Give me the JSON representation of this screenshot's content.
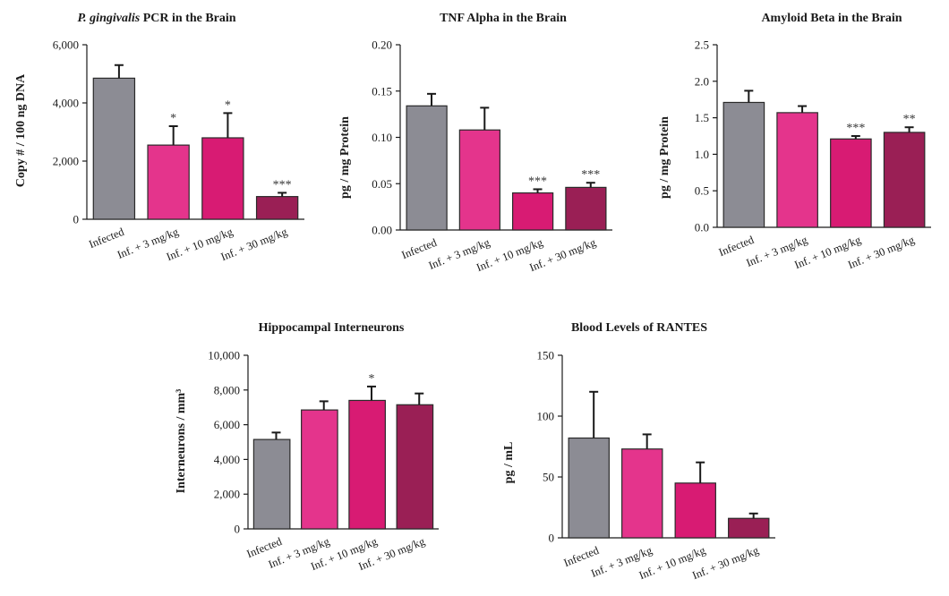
{
  "colors": [
    "#8c8c94",
    "#e4348c",
    "#d81b73",
    "#9a1f55"
  ],
  "chart_data": [
    {
      "type": "bar",
      "title_italic": "P. gingivalis",
      "title": " PCR in the Brain",
      "ylabel": "Copy # / 100 ng DNA",
      "categories": [
        "Infected",
        "Inf. + 3 mg/kg",
        "Inf. + 10 mg/kg",
        "Inf. + 30 mg/kg"
      ],
      "values": [
        4850,
        2550,
        2800,
        780
      ],
      "errors": [
        450,
        650,
        850,
        130
      ],
      "significance": [
        "",
        "*",
        "*",
        "***"
      ],
      "ylim": [
        0,
        6000
      ],
      "yticks": [
        "0",
        "2,000",
        "4,000",
        "6,000"
      ],
      "ytick_values": [
        0,
        2000,
        4000,
        6000
      ]
    },
    {
      "type": "bar",
      "title": "TNF Alpha in the Brain",
      "ylabel": "pg / mg Protein",
      "categories": [
        "Infected",
        "Inf. + 3 mg/kg",
        "Inf. + 10 mg/kg",
        "Inf. + 30 mg/kg"
      ],
      "values": [
        0.134,
        0.108,
        0.04,
        0.046
      ],
      "errors": [
        0.013,
        0.024,
        0.004,
        0.005
      ],
      "significance": [
        "",
        "",
        "***",
        "***"
      ],
      "ylim": [
        0,
        0.2
      ],
      "yticks": [
        "0.00",
        "0.05",
        "0.10",
        "0.15",
        "0.20"
      ],
      "ytick_values": [
        0,
        0.05,
        0.1,
        0.15,
        0.2
      ]
    },
    {
      "type": "bar",
      "title": "Amyloid Beta in the Brain",
      "ylabel": "pg / mg Protein",
      "categories": [
        "Infected",
        "Inf. + 3 mg/kg",
        "Inf. + 10 mg/kg",
        "Inf. + 30 mg/kg"
      ],
      "values": [
        1.71,
        1.57,
        1.21,
        1.3
      ],
      "errors": [
        0.16,
        0.09,
        0.04,
        0.07
      ],
      "significance": [
        "",
        "",
        "***",
        "**"
      ],
      "ylim": [
        0,
        2.5
      ],
      "yticks": [
        "0.0",
        "0.5",
        "1.0",
        "1.5",
        "2.0",
        "2.5"
      ],
      "ytick_values": [
        0,
        0.5,
        1.0,
        1.5,
        2.0,
        2.5
      ]
    },
    {
      "type": "bar",
      "title": "Hippocampal Interneurons",
      "ylabel": "Interneurons / mm³",
      "categories": [
        "Infected",
        "Inf. + 3 mg/kg",
        "Inf. + 10 mg/kg",
        "Inf. + 30 mg/kg"
      ],
      "values": [
        5150,
        6850,
        7400,
        7150
      ],
      "errors": [
        400,
        500,
        800,
        650
      ],
      "significance": [
        "",
        "",
        "*",
        ""
      ],
      "ylim": [
        0,
        10000
      ],
      "yticks": [
        "0",
        "2,000",
        "4,000",
        "6,000",
        "8,000",
        "10,000"
      ],
      "ytick_values": [
        0,
        2000,
        4000,
        6000,
        8000,
        10000
      ]
    },
    {
      "type": "bar",
      "title": "Blood Levels of RANTES",
      "ylabel": "pg / mL",
      "categories": [
        "Infected",
        "Inf. + 3 mg/kg",
        "Inf. + 10 mg/kg",
        "Inf. + 30 mg/kg"
      ],
      "values": [
        82,
        73,
        45,
        16
      ],
      "errors": [
        38,
        12,
        17,
        4
      ],
      "significance": [
        "",
        "",
        "",
        ""
      ],
      "ylim": [
        0,
        150
      ],
      "yticks": [
        "0",
        "50",
        "100",
        "150"
      ],
      "ytick_values": [
        0,
        50,
        100,
        150
      ]
    }
  ]
}
